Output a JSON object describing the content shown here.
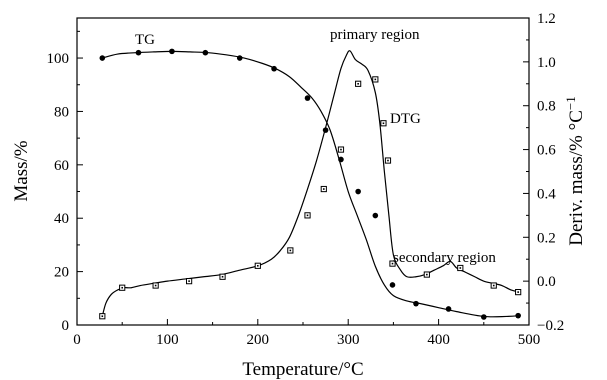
{
  "chart_data": {
    "type": "line",
    "xlabel": "Temperature/°C",
    "ylabel_left": "Mass/%",
    "ylabel_right_main": "Deriv. mass/% °C",
    "ylabel_right_sup": "−1",
    "xlim": [
      0,
      500
    ],
    "ylim_left": [
      0,
      115
    ],
    "ylim_right": [
      -0.2,
      1.2
    ],
    "xticks": [
      "0",
      "100",
      "200",
      "300",
      "400",
      "500"
    ],
    "yticks_left": [
      "0",
      "20",
      "40",
      "60",
      "80",
      "100"
    ],
    "yticks_right": [
      "−0.2",
      "0.0",
      "0.2",
      "0.4",
      "0.6",
      "0.8",
      "1.0",
      "1.2"
    ],
    "grid": false,
    "annotations": {
      "tg": "TG",
      "dtg": "DTG",
      "primary": "primary region",
      "secondary": "secondary region"
    },
    "series": [
      {
        "name": "TG",
        "axis": "left",
        "marker": "circle",
        "x": [
          28,
          45,
          65,
          85,
          105,
          125,
          145,
          165,
          185,
          205,
          220,
          235,
          248,
          260,
          270,
          280,
          290,
          300,
          310,
          320,
          330,
          340,
          350,
          365,
          380,
          400,
          420,
          450,
          475,
          490
        ],
        "y": [
          100,
          101.5,
          102,
          102.3,
          102.5,
          102.3,
          102,
          101.2,
          100,
          98,
          96,
          93,
          89,
          85,
          80,
          73,
          62,
          50,
          41,
          32,
          22,
          15,
          11,
          9,
          8,
          6.5,
          5,
          3.2,
          3.2,
          3.5
        ],
        "markers_x": [
          28,
          68,
          105,
          142,
          180,
          218,
          255,
          275,
          292,
          311,
          330,
          349,
          375,
          411,
          450,
          488
        ],
        "markers_y": [
          100,
          102,
          102.5,
          102,
          100,
          96,
          85,
          73,
          62,
          50,
          41,
          15,
          8,
          6,
          3,
          3.5
        ]
      },
      {
        "name": "DTG",
        "axis": "right",
        "marker": "square",
        "x": [
          28,
          32,
          38,
          45,
          52,
          60,
          70,
          85,
          100,
          120,
          140,
          160,
          180,
          200,
          215,
          225,
          235,
          245,
          255,
          265,
          275,
          285,
          292,
          298,
          302,
          308,
          315,
          322,
          330,
          335,
          340,
          345,
          350,
          358,
          365,
          375,
          385,
          395,
          405,
          413,
          420,
          430,
          440,
          450,
          460,
          470,
          480,
          490
        ],
        "y": [
          -0.16,
          -0.1,
          -0.06,
          -0.04,
          -0.03,
          -0.03,
          -0.02,
          -0.01,
          0.0,
          0.01,
          0.02,
          0.03,
          0.05,
          0.07,
          0.1,
          0.14,
          0.2,
          0.3,
          0.42,
          0.55,
          0.7,
          0.86,
          0.97,
          1.03,
          1.05,
          1.01,
          0.99,
          0.96,
          0.86,
          0.72,
          0.5,
          0.3,
          0.12,
          0.05,
          0.02,
          0.02,
          0.03,
          0.05,
          0.07,
          0.09,
          0.06,
          0.04,
          0.02,
          0.0,
          -0.01,
          -0.02,
          -0.04,
          -0.05
        ],
        "markers_x": [
          28,
          50,
          87,
          124,
          161,
          200,
          236,
          255,
          273,
          292,
          311,
          330,
          339,
          344,
          349,
          387,
          424,
          461,
          488
        ],
        "markers_y": [
          -0.16,
          -0.03,
          -0.02,
          0.0,
          0.02,
          0.07,
          0.14,
          0.3,
          0.42,
          0.6,
          0.9,
          0.92,
          0.72,
          0.55,
          0.08,
          0.03,
          0.06,
          -0.02,
          -0.05
        ]
      }
    ]
  }
}
